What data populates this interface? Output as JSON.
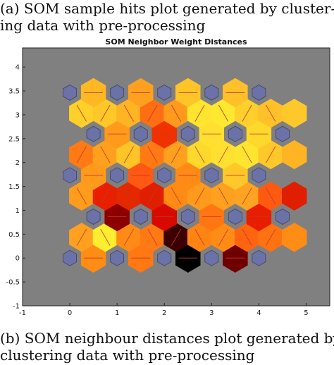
{
  "captions": {
    "top_line1": "(a) SOM sample hits plot generated by cluster-",
    "top_line2": "ing data with pre-processing",
    "bottom_line1": "(b) SOM neighbour distances plot generated by",
    "bottom_line2": "clustering data with pre-processing"
  },
  "colors": {
    "background": "#808080",
    "neuron": "#6b72a8",
    "neuron_edge": "#3c3f66",
    "connector_line": "#c0392b"
  },
  "chart_data": {
    "type": "heatmap",
    "title": "SOM Neighbor Weight Distances",
    "xlim": [
      -1,
      5.5
    ],
    "ylim": [
      -1,
      4.4
    ],
    "xticks": [
      -1,
      0,
      1,
      2,
      3,
      4,
      5
    ],
    "yticks": [
      -1,
      -0.5,
      0,
      0.5,
      1,
      1.5,
      2,
      2.5,
      3,
      3.5,
      4
    ],
    "grid": false,
    "neurons": [
      [
        0,
        0
      ],
      [
        1,
        0
      ],
      [
        2,
        0
      ],
      [
        3,
        0
      ],
      [
        4,
        0
      ],
      [
        0.5,
        0.866
      ],
      [
        1.5,
        0.866
      ],
      [
        2.5,
        0.866
      ],
      [
        3.5,
        0.866
      ],
      [
        4.5,
        0.866
      ],
      [
        0,
        1.732
      ],
      [
        1,
        1.732
      ],
      [
        2,
        1.732
      ],
      [
        3,
        1.732
      ],
      [
        4,
        1.732
      ],
      [
        0.5,
        2.598
      ],
      [
        1.5,
        2.598
      ],
      [
        2.5,
        2.598
      ],
      [
        3.5,
        2.598
      ],
      [
        4.5,
        2.598
      ],
      [
        0,
        3.464
      ],
      [
        1,
        3.464
      ],
      [
        2,
        3.464
      ],
      [
        3,
        3.464
      ],
      [
        4,
        3.464
      ]
    ],
    "distance_patches": [
      {
        "x": 0.5,
        "y": 0,
        "color": "#ff8c14"
      },
      {
        "x": 1.5,
        "y": 0,
        "color": "#ff7812"
      },
      {
        "x": 2.5,
        "y": 0,
        "color": "#000000"
      },
      {
        "x": 3.5,
        "y": 0,
        "color": "#6e0000"
      },
      {
        "x": 0.25,
        "y": 0.433,
        "color": "#ffa020"
      },
      {
        "x": 0.75,
        "y": 0.433,
        "color": "#ffee30"
      },
      {
        "x": 1.25,
        "y": 0.433,
        "color": "#ff8a16"
      },
      {
        "x": 1.75,
        "y": 0.433,
        "color": "#ff7a14"
      },
      {
        "x": 2.25,
        "y": 0.433,
        "color": "#3c0000"
      },
      {
        "x": 2.75,
        "y": 0.433,
        "color": "#ff8414"
      },
      {
        "x": 3.25,
        "y": 0.433,
        "color": "#ff8c16"
      },
      {
        "x": 3.75,
        "y": 0.433,
        "color": "#ff6410"
      },
      {
        "x": 4.25,
        "y": 0.433,
        "color": "#ff7212"
      },
      {
        "x": 4.75,
        "y": 0.433,
        "color": "#ff8c14"
      },
      {
        "x": 1,
        "y": 0.866,
        "color": "#8c0000"
      },
      {
        "x": 2,
        "y": 0.866,
        "color": "#d80a00"
      },
      {
        "x": 3,
        "y": 0.866,
        "color": "#ff7612"
      },
      {
        "x": 4,
        "y": 0.866,
        "color": "#e81e00"
      },
      {
        "x": 0.25,
        "y": 1.299,
        "color": "#ff9c1c"
      },
      {
        "x": 0.75,
        "y": 1.299,
        "color": "#e82000"
      },
      {
        "x": 1.25,
        "y": 1.299,
        "color": "#e42800"
      },
      {
        "x": 1.75,
        "y": 1.299,
        "color": "#e01e00"
      },
      {
        "x": 2.25,
        "y": 1.299,
        "color": "#ff8a14"
      },
      {
        "x": 2.75,
        "y": 1.299,
        "color": "#ff9a1c"
      },
      {
        "x": 3.25,
        "y": 1.299,
        "color": "#ffa020"
      },
      {
        "x": 3.75,
        "y": 1.299,
        "color": "#ffa422"
      },
      {
        "x": 4.25,
        "y": 1.299,
        "color": "#ff5a10"
      },
      {
        "x": 4.75,
        "y": 1.299,
        "color": "#e01e00"
      },
      {
        "x": 0.5,
        "y": 1.732,
        "color": "#ff9a1c"
      },
      {
        "x": 1.5,
        "y": 1.732,
        "color": "#ff5812"
      },
      {
        "x": 2.5,
        "y": 1.732,
        "color": "#ff8a16"
      },
      {
        "x": 3.5,
        "y": 1.732,
        "color": "#ffc82a"
      },
      {
        "x": 0.25,
        "y": 2.165,
        "color": "#ff7a14"
      },
      {
        "x": 0.75,
        "y": 2.165,
        "color": "#ffa01e"
      },
      {
        "x": 1.25,
        "y": 2.165,
        "color": "#ffc428"
      },
      {
        "x": 1.75,
        "y": 2.165,
        "color": "#ff7a14"
      },
      {
        "x": 2.25,
        "y": 2.165,
        "color": "#ffa01e"
      },
      {
        "x": 2.75,
        "y": 2.165,
        "color": "#ffd82c"
      },
      {
        "x": 3.25,
        "y": 2.165,
        "color": "#ffe030"
      },
      {
        "x": 3.75,
        "y": 2.165,
        "color": "#ffe430"
      },
      {
        "x": 4.25,
        "y": 2.165,
        "color": "#ffc82a"
      },
      {
        "x": 4.75,
        "y": 2.165,
        "color": "#ffb424"
      },
      {
        "x": 1,
        "y": 2.598,
        "color": "#ff9a1c"
      },
      {
        "x": 2,
        "y": 2.598,
        "color": "#f03200"
      },
      {
        "x": 3,
        "y": 2.598,
        "color": "#ffe030"
      },
      {
        "x": 4,
        "y": 2.598,
        "color": "#ffd82c"
      },
      {
        "x": 0.25,
        "y": 3.031,
        "color": "#ffd02a"
      },
      {
        "x": 0.75,
        "y": 3.031,
        "color": "#ffc828"
      },
      {
        "x": 1.25,
        "y": 3.031,
        "color": "#ffb424"
      },
      {
        "x": 1.75,
        "y": 3.031,
        "color": "#ff6e12"
      },
      {
        "x": 2.25,
        "y": 3.031,
        "color": "#ff9a1c"
      },
      {
        "x": 2.75,
        "y": 3.031,
        "color": "#ffe430"
      },
      {
        "x": 3.25,
        "y": 3.031,
        "color": "#ffe830"
      },
      {
        "x": 3.75,
        "y": 3.031,
        "color": "#ffd02c"
      },
      {
        "x": 4.25,
        "y": 3.031,
        "color": "#ffc02a"
      },
      {
        "x": 4.75,
        "y": 3.031,
        "color": "#ffc82a"
      },
      {
        "x": 0.5,
        "y": 3.464,
        "color": "#ffb824"
      },
      {
        "x": 1.5,
        "y": 3.464,
        "color": "#ffa020"
      },
      {
        "x": 2.5,
        "y": 3.464,
        "color": "#ffc428"
      },
      {
        "x": 3.5,
        "y": 3.464,
        "color": "#ffc02a"
      }
    ]
  }
}
